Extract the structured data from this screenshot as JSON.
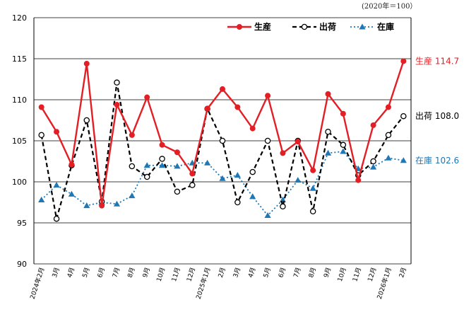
{
  "chart_data": {
    "type": "line",
    "note": "(2020年＝100）",
    "title": "",
    "xlabel": "",
    "ylabel": "",
    "categories": [
      "2024年2月",
      "3月",
      "4月",
      "5月",
      "6月",
      "7月",
      "8月",
      "9月",
      "10月",
      "11月",
      "12月",
      "2025年1月",
      "2月",
      "3月",
      "4月",
      "5月",
      "6月",
      "7月",
      "8月",
      "9月",
      "10月",
      "11月",
      "12月",
      "2026年1月",
      "2月"
    ],
    "ylim": [
      90,
      120
    ],
    "yticks": [
      90,
      95,
      100,
      105,
      110,
      115,
      120
    ],
    "grid": true,
    "legend_position": "top-right",
    "series": [
      {
        "name": "生産",
        "color": "#e31e24",
        "line_style": "solid",
        "marker": "filled-circle",
        "values": [
          109.1,
          106.1,
          102.1,
          114.4,
          97.1,
          109.4,
          105.7,
          110.3,
          104.5,
          103.6,
          101.0,
          108.9,
          111.3,
          109.1,
          106.5,
          110.5,
          103.5,
          104.9,
          101.4,
          110.7,
          108.3,
          100.2,
          106.9,
          109.1,
          114.7
        ]
      },
      {
        "name": "出荷",
        "color": "#000000",
        "line_style": "dashed",
        "marker": "open-circle",
        "values": [
          105.7,
          95.5,
          102.0,
          107.5,
          97.6,
          112.1,
          101.9,
          100.6,
          102.8,
          98.8,
          99.6,
          108.9,
          105.0,
          97.5,
          101.2,
          105.0,
          97.0,
          105.0,
          96.4,
          106.1,
          104.5,
          100.8,
          102.5,
          105.7,
          108.0
        ]
      },
      {
        "name": "在庫",
        "color": "#1f78b4",
        "line_style": "dotted",
        "marker": "triangle",
        "values": [
          97.8,
          99.6,
          98.5,
          97.1,
          97.5,
          97.3,
          98.3,
          102.0,
          102.0,
          101.9,
          102.3,
          102.3,
          100.4,
          100.8,
          98.2,
          95.9,
          97.8,
          100.2,
          99.2,
          103.5,
          103.7,
          101.6,
          101.8,
          102.9,
          102.6
        ]
      }
    ],
    "end_labels": [
      {
        "series": "生産",
        "text": "生産 114.7"
      },
      {
        "series": "出荷",
        "text": "出荷 108.0"
      },
      {
        "series": "在庫",
        "text": "在庫 102.6"
      }
    ]
  }
}
